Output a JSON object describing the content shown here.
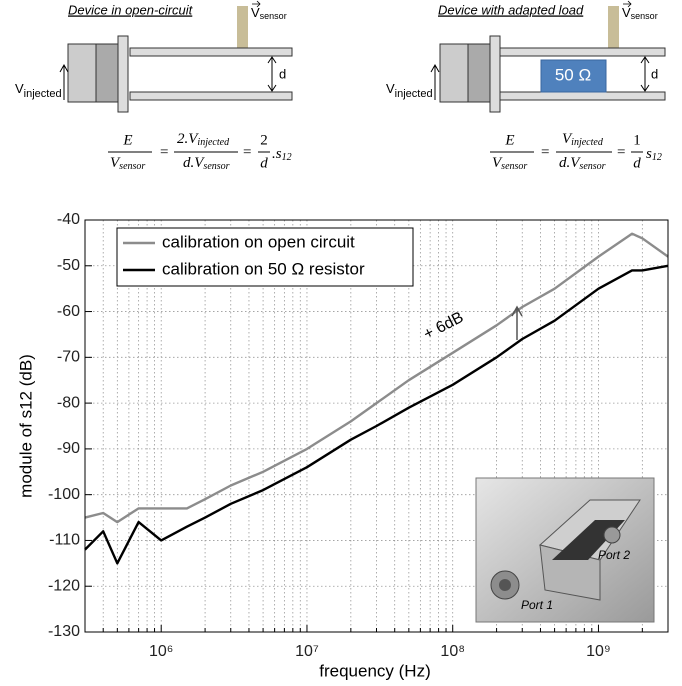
{
  "diagrams": [
    {
      "title": "Device in open-circuit",
      "v": "V",
      "sensor": "sensor",
      "injected": "injected",
      "d": "d",
      "eq": {
        "f1n": "E",
        "f1d": "V",
        "f1ds": "sensor",
        "eq": "=",
        "f2n": "2.V",
        "f2ns": "injected",
        "f2d": "d.V",
        "f2ds": "sensor",
        "f3n": "2",
        "f3d": "d",
        "tail": ".s",
        "tails": "12"
      }
    },
    {
      "title": "Device with adapted load",
      "v": "V",
      "sensor": "sensor",
      "injected": "injected",
      "d": "d",
      "load": "50 Ω",
      "eq": {
        "f1n": "E",
        "f1d": "V",
        "f1ds": "sensor",
        "eq": "=",
        "f2n": "V",
        "f2ns": "injected",
        "f2d": "d.V",
        "f2ds": "sensor",
        "f3n": "1",
        "f3d": "d",
        "tail": "s",
        "tails": "12"
      }
    }
  ],
  "chart_data": {
    "type": "line",
    "xlabel": "frequency (Hz)",
    "ylabel": "module of s12 (dB)",
    "xscale": "log",
    "grid": true,
    "xlim": [
      300000,
      3000000000
    ],
    "xticks": [
      {
        "value": 1000000,
        "label": "10⁶"
      },
      {
        "value": 10000000,
        "label": "10⁷"
      },
      {
        "value": 100000000,
        "label": "10⁸"
      },
      {
        "value": 1000000000,
        "label": "10⁹"
      }
    ],
    "xminorticks": [
      400000,
      500000,
      600000,
      700000,
      800000,
      900000,
      2000000,
      3000000,
      4000000,
      5000000,
      6000000,
      7000000,
      8000000,
      9000000,
      20000000,
      30000000,
      40000000,
      50000000,
      60000000,
      70000000,
      80000000,
      90000000,
      200000000,
      300000000,
      400000000,
      500000000,
      600000000,
      700000000,
      800000000,
      900000000,
      2000000000
    ],
    "ylim": [
      -130,
      -40
    ],
    "yticks": [
      -130,
      -120,
      -110,
      -100,
      -90,
      -80,
      -70,
      -60,
      -50,
      -40
    ],
    "legend": "upper left",
    "x": [
      300000,
      400000,
      500000,
      700000,
      1000000,
      1500000,
      2000000,
      3000000,
      5000000,
      10000000,
      20000000,
      30000000,
      50000000,
      100000000,
      200000000,
      300000000,
      500000000,
      1000000000,
      1700000000,
      2000000000,
      3000000000
    ],
    "series": [
      {
        "name": "calibration on open circuit",
        "color": "#8c8c8c",
        "values": [
          -105,
          -104,
          -106,
          -103,
          -103,
          -103,
          -101,
          -98,
          -95,
          -90,
          -84,
          -80,
          -75,
          -69,
          -63,
          -59,
          -55,
          -48,
          -43,
          -44,
          -48
        ]
      },
      {
        "name": "calibration on 50 Ω resistor",
        "color": "#000000",
        "values": [
          -112,
          -108,
          -115,
          -106,
          -110,
          -107,
          -105,
          -102,
          -99,
          -94,
          -88,
          -85,
          -81,
          -76,
          -70,
          -66,
          -62,
          -55,
          -51,
          -51,
          -50
        ]
      }
    ],
    "annotation": "+ 6dB",
    "inset_labels": [
      "Port 1",
      "Port 2"
    ]
  }
}
